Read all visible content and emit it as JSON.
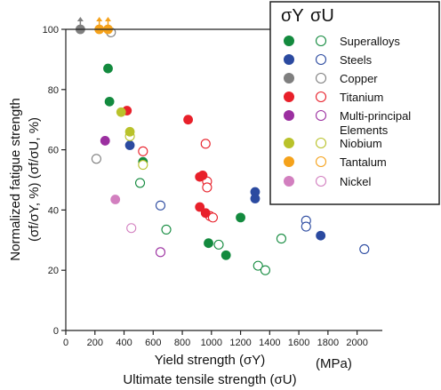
{
  "chart_data": {
    "type": "scatter",
    "xlim": [
      0,
      2100
    ],
    "ylim": [
      0,
      100
    ],
    "x_ticks": [
      "0",
      "200",
      "400",
      "600",
      "800",
      "1000",
      "1200",
      "1400",
      "1600",
      "1800",
      "2000"
    ],
    "y_ticks": [
      "0",
      "20",
      "40",
      "60",
      "80",
      "100"
    ],
    "ylabel_line1": "Normalized fatigue strength",
    "ylabel_line2": "(σf/σY, %) (σf/σU, %)",
    "xlabel_line1": "Yield strength (σY)",
    "xlabel_line2": "Ultimate tensile strength (σU)",
    "xunit": "(MPa)",
    "legend_head_yield": "σY",
    "legend_head_uts": "σU",
    "legend_items": [
      {
        "label": "Superalloys",
        "color": "#138a3e"
      },
      {
        "label": "Steels",
        "color": "#2b4aa0"
      },
      {
        "label": "Copper",
        "color": "#7f7f7f"
      },
      {
        "label": "Titanium",
        "color": "#e8202a"
      },
      {
        "label": "Multi-principal Elements",
        "color": "#9b2fa0"
      },
      {
        "label": "Niobium",
        "color": "#b9c22b"
      },
      {
        "label": "Tantalum",
        "color": "#f5a21b"
      },
      {
        "label": "Nickel",
        "color": "#d27fbf"
      }
    ],
    "series": [
      {
        "name": "Superalloys",
        "color": "#138a3e",
        "yield": [
          [
            290,
            87
          ],
          [
            300,
            76
          ],
          [
            530,
            56
          ],
          [
            980,
            29
          ],
          [
            1100,
            25
          ],
          [
            1200,
            37.5
          ]
        ],
        "uts": [
          [
            510,
            49
          ],
          [
            690,
            33.5
          ],
          [
            1050,
            28.5
          ],
          [
            1320,
            21.5
          ],
          [
            1370,
            20
          ],
          [
            1480,
            30.5
          ]
        ]
      },
      {
        "name": "Steels",
        "color": "#2b4aa0",
        "yield": [
          [
            440,
            61.5
          ],
          [
            1300,
            46
          ],
          [
            1300,
            43.8
          ],
          [
            1750,
            31.5
          ]
        ],
        "uts": [
          [
            650,
            41.5
          ],
          [
            1650,
            36.5
          ],
          [
            1650,
            34.5
          ],
          [
            2050,
            27
          ]
        ]
      },
      {
        "name": "Copper",
        "color": "#7f7f7f",
        "yield": [
          [
            100,
            100
          ]
        ],
        "uts": [
          [
            210,
            57
          ],
          [
            310,
            99
          ]
        ]
      },
      {
        "name": "Titanium",
        "color": "#e8202a",
        "yield": [
          [
            420,
            73
          ],
          [
            840,
            70
          ],
          [
            920,
            51
          ],
          [
            940,
            51.5
          ],
          [
            920,
            41
          ],
          [
            960,
            39
          ]
        ],
        "uts": [
          [
            530,
            59.5
          ],
          [
            960,
            62
          ],
          [
            970,
            49.5
          ],
          [
            970,
            47.5
          ],
          [
            990,
            38
          ],
          [
            1010,
            37.5
          ]
        ]
      },
      {
        "name": "Multi-principal Elements",
        "color": "#9b2fa0",
        "yield": [
          [
            270,
            63
          ]
        ],
        "uts": [
          [
            650,
            26
          ]
        ]
      },
      {
        "name": "Niobium",
        "color": "#b9c22b",
        "yield": [
          [
            380,
            72.5
          ],
          [
            440,
            66
          ]
        ],
        "uts": [
          [
            530,
            55
          ],
          [
            440,
            64.5
          ]
        ]
      },
      {
        "name": "Tantalum",
        "color": "#f5a21b",
        "yield": [
          [
            230,
            100
          ],
          [
            290,
            100
          ]
        ],
        "uts": []
      },
      {
        "name": "Nickel",
        "color": "#d27fbf",
        "yield": [
          [
            340,
            43.5
          ]
        ],
        "uts": [
          [
            450,
            34
          ]
        ]
      }
    ],
    "upward_arrows": [
      {
        "x": 100,
        "color": "#7f7f7f"
      },
      {
        "x": 230,
        "color": "#f5a21b"
      },
      {
        "x": 290,
        "color": "#f5a21b"
      }
    ]
  }
}
